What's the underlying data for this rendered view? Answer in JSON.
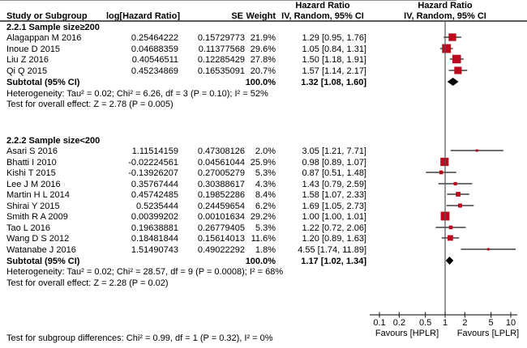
{
  "header": {
    "col_study": "Study or Subgroup",
    "col_loghr": "log[Hazard Ratio]",
    "col_se": "SE",
    "col_weight": "Weight",
    "col_hr_title": "Hazard Ratio",
    "col_hr_sub": "IV, Random, 95% CI",
    "col_plot_title": "Hazard Ratio",
    "col_plot_sub": "IV, Random, 95% CI"
  },
  "colors": {
    "marker_red": "#bb0a1e",
    "diamond_black": "#000000",
    "ci_line": "#1a1a1a",
    "axis_line": "#333333",
    "vertical_line": "#555555"
  },
  "chart_data": {
    "type": "forest",
    "x_axis": {
      "scale": "log10",
      "ticks": [
        0.1,
        0.2,
        0.5,
        1,
        2,
        5,
        10
      ],
      "tick_labels": [
        "0.1",
        "0.2",
        "0.5",
        "1",
        "2",
        "5",
        "10"
      ],
      "left_label": "Favours [HPLR]",
      "right_label": "Favours [LPLR]"
    },
    "groups": [
      {
        "title": "2.2.1 Sample size≥200",
        "studies": [
          {
            "name": "Alagappan M 2016",
            "log_hr": "0.25464222",
            "se": "0.15729773",
            "weight": "21.9%",
            "weight_value": 21.9,
            "hr": 1.29,
            "ci_low": 0.95,
            "ci_high": 1.76,
            "ci_text": "1.29 [0.95, 1.76]"
          },
          {
            "name": "Inoue D 2015",
            "log_hr": "0.04688359",
            "se": "0.11377568",
            "weight": "29.6%",
            "weight_value": 29.6,
            "hr": 1.05,
            "ci_low": 0.84,
            "ci_high": 1.31,
            "ci_text": "1.05 [0.84, 1.31]"
          },
          {
            "name": "Liu Z 2016",
            "log_hr": "0.40546511",
            "se": "0.12285429",
            "weight": "27.8%",
            "weight_value": 27.8,
            "hr": 1.5,
            "ci_low": 1.18,
            "ci_high": 1.91,
            "ci_text": "1.50 [1.18, 1.91]"
          },
          {
            "name": "Qi Q 2015",
            "log_hr": "0.45234869",
            "se": "0.16535091",
            "weight": "20.7%",
            "weight_value": 20.7,
            "hr": 1.57,
            "ci_low": 1.14,
            "ci_high": 2.17,
            "ci_text": "1.57 [1.14, 2.17]"
          }
        ],
        "subtotal": {
          "label": "Subtotal (95% CI)",
          "weight": "100.0%",
          "hr": 1.32,
          "ci_low": 1.08,
          "ci_high": 1.6,
          "ci_text": "1.32 [1.08, 1.60]"
        },
        "heterogeneity": "Heterogeneity: Tau² = 0.02; Chi² = 6.26, df = 3 (P = 0.10); I² = 52%",
        "overall_effect": "Test for overall effect: Z = 2.78 (P = 0.005)"
      },
      {
        "title": "2.2.2 Sample size<200",
        "studies": [
          {
            "name": "Asari S 2016",
            "log_hr": "1.11514159",
            "se": "0.47308126",
            "weight": "2.0%",
            "weight_value": 2.0,
            "hr": 3.05,
            "ci_low": 1.21,
            "ci_high": 7.71,
            "ci_text": "3.05 [1.21, 7.71]"
          },
          {
            "name": "Bhatti I 2010",
            "log_hr": "-0.02224561",
            "se": "0.04561044",
            "weight": "25.9%",
            "weight_value": 25.9,
            "hr": 0.98,
            "ci_low": 0.89,
            "ci_high": 1.07,
            "ci_text": "0.98 [0.89, 1.07]"
          },
          {
            "name": "Kishi T 2015",
            "log_hr": "-0.13926207",
            "se": "0.27005279",
            "weight": "5.3%",
            "weight_value": 5.3,
            "hr": 0.87,
            "ci_low": 0.51,
            "ci_high": 1.48,
            "ci_text": "0.87 [0.51, 1.48]"
          },
          {
            "name": "Lee J M 2016",
            "log_hr": "0.35767444",
            "se": "0.30388617",
            "weight": "4.3%",
            "weight_value": 4.3,
            "hr": 1.43,
            "ci_low": 0.79,
            "ci_high": 2.59,
            "ci_text": "1.43 [0.79, 2.59]"
          },
          {
            "name": "Martin H L 2014",
            "log_hr": "0.45742485",
            "se": "0.19852286",
            "weight": "8.4%",
            "weight_value": 8.4,
            "hr": 1.58,
            "ci_low": 1.07,
            "ci_high": 2.33,
            "ci_text": "1.58 [1.07, 2.33]"
          },
          {
            "name": "Shirai Y 2015",
            "log_hr": "0.5235444",
            "se": "0.24459654",
            "weight": "6.2%",
            "weight_value": 6.2,
            "hr": 1.69,
            "ci_low": 1.05,
            "ci_high": 2.73,
            "ci_text": "1.69 [1.05, 2.73]"
          },
          {
            "name": "Smith R A 2009",
            "log_hr": "0.00399202",
            "se": "0.00101634",
            "weight": "29.2%",
            "weight_value": 29.2,
            "hr": 1.0,
            "ci_low": 1.0,
            "ci_high": 1.01,
            "ci_text": "1.00 [1.00, 1.01]"
          },
          {
            "name": "Tao L 2016",
            "log_hr": "0.19638881",
            "se": "0.26779405",
            "weight": "5.3%",
            "weight_value": 5.3,
            "hr": 1.22,
            "ci_low": 0.72,
            "ci_high": 2.06,
            "ci_text": "1.22 [0.72, 2.06]"
          },
          {
            "name": "Wang D S 2012",
            "log_hr": "0.18481844",
            "se": "0.15614013",
            "weight": "11.6%",
            "weight_value": 11.6,
            "hr": 1.2,
            "ci_low": 0.89,
            "ci_high": 1.63,
            "ci_text": "1.20 [0.89, 1.63]"
          },
          {
            "name": "Watanabe J 2016",
            "log_hr": "1.51490743",
            "se": "0.49022292",
            "weight": "1.8%",
            "weight_value": 1.8,
            "hr": 4.55,
            "ci_low": 1.74,
            "ci_high": 11.89,
            "ci_text": "4.55 [1.74, 11.89]"
          }
        ],
        "subtotal": {
          "label": "Subtotal (95% CI)",
          "weight": "100.0%",
          "hr": 1.17,
          "ci_low": 1.02,
          "ci_high": 1.34,
          "ci_text": "1.17 [1.02, 1.34]"
        },
        "heterogeneity": "Heterogeneity: Tau² = 0.02; Chi² = 28.57, df = 9 (P = 0.0008); I² = 68%",
        "overall_effect": "Test for overall effect: Z = 2.28 (P = 0.02)"
      }
    ],
    "subgroup_diff": "Test for subgroup differences: Chi² = 0.99, df = 1 (P = 0.32), I² = 0%"
  }
}
